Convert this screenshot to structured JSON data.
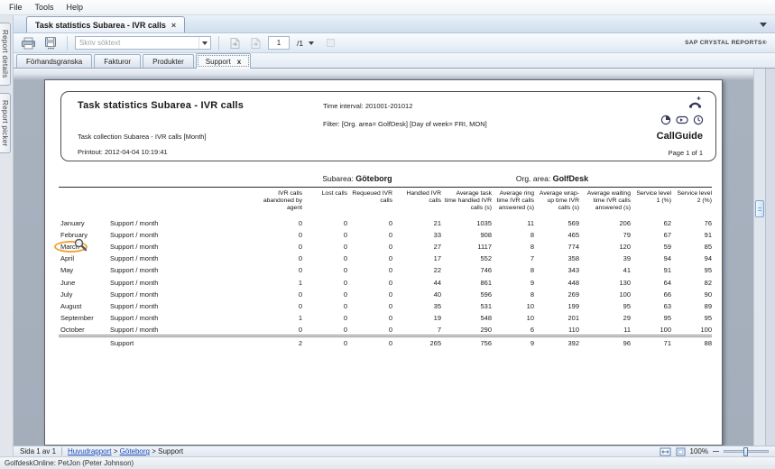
{
  "menu": {
    "items": [
      "File",
      "Tools",
      "Help"
    ]
  },
  "left_rail": {
    "tabs": [
      "Report details",
      "Report picker"
    ]
  },
  "document_tab": {
    "title": "Task statistics Subarea - IVR calls",
    "close_label": "×"
  },
  "toolbar": {
    "search_placeholder": "Skriv söktext",
    "page_number": "1",
    "page_total": "/1",
    "brand": "SAP CRYSTAL REPORTS®"
  },
  "subtabs": [
    {
      "label": "Förhandsgranska",
      "active": false,
      "closable": false
    },
    {
      "label": "Fakturor",
      "active": false,
      "closable": false
    },
    {
      "label": "Produkter",
      "active": false,
      "closable": false
    },
    {
      "label": "Support",
      "active": true,
      "closable": true,
      "close_label": "x"
    }
  ],
  "report": {
    "title": "Task statistics Subarea - IVR calls",
    "collection": "Task collection Subarea - IVR calls [Month]",
    "printout": "Printout: 2012-04-04 10:19:41",
    "time_interval": "Time interval: 201001-201012",
    "filter": "Filter: [Org. area= GolfDesk] [Day of week= FRI, MON]",
    "brand": "CallGuide",
    "page_label": "Page 1 of 1",
    "groups": {
      "left_label": "Subarea: ",
      "left_value": "Göteborg",
      "right_label": "Org. area: ",
      "right_value": "GolfDesk"
    },
    "table": {
      "columns": [
        "IVR calls abandoned by agent",
        "Lost calls",
        "Requeued IVR calls",
        "Handled IVR calls",
        "Average task time handled IVR calls (s)",
        "Average ring time IVR calls answered (s)",
        "Average wrap-up time IVR calls (s)",
        "Average waiting time IVR calls answered (s)",
        "Service level 1 (%)",
        "Service level 2 (%)"
      ],
      "rows": [
        {
          "month": "January",
          "task": "Support / month",
          "values": [
            0,
            0,
            0,
            21,
            1035,
            11,
            569,
            206,
            62,
            76
          ]
        },
        {
          "month": "February",
          "task": "Support / month",
          "values": [
            0,
            0,
            0,
            33,
            908,
            8,
            465,
            79,
            67,
            91
          ]
        },
        {
          "month": "March",
          "task": "Support / month",
          "values": [
            0,
            0,
            0,
            27,
            1117,
            8,
            774,
            120,
            59,
            85
          ],
          "hovered": true
        },
        {
          "month": "April",
          "task": "Support / month",
          "values": [
            0,
            0,
            0,
            17,
            552,
            7,
            358,
            39,
            94,
            94
          ]
        },
        {
          "month": "May",
          "task": "Support / month",
          "values": [
            0,
            0,
            0,
            22,
            746,
            8,
            343,
            41,
            91,
            95
          ]
        },
        {
          "month": "June",
          "task": "Support / month",
          "values": [
            1,
            0,
            0,
            44,
            861,
            9,
            448,
            130,
            64,
            82
          ]
        },
        {
          "month": "July",
          "task": "Support / month",
          "values": [
            0,
            0,
            0,
            40,
            596,
            8,
            269,
            100,
            66,
            90
          ]
        },
        {
          "month": "August",
          "task": "Support / month",
          "values": [
            0,
            0,
            0,
            35,
            531,
            10,
            199,
            95,
            63,
            89
          ]
        },
        {
          "month": "September",
          "task": "Support / month",
          "values": [
            1,
            0,
            0,
            19,
            548,
            10,
            201,
            29,
            95,
            95
          ]
        },
        {
          "month": "October",
          "task": "Support / month",
          "values": [
            0,
            0,
            0,
            7,
            290,
            6,
            110,
            11,
            100,
            100
          ]
        }
      ],
      "total": {
        "task": "Support",
        "values": [
          2,
          0,
          0,
          265,
          756,
          9,
          392,
          96,
          71,
          88
        ]
      }
    }
  },
  "statusbar": {
    "page_info": "Sida 1 av 1",
    "breadcrumb": [
      {
        "label": "Huvudrapport",
        "link": true
      },
      {
        "label": "Göteborg",
        "link": true
      },
      {
        "label": "Support",
        "link": false
      }
    ],
    "separator": ">",
    "zoom_level": "100%"
  },
  "app_status": "GolfdeskOnline: PetJon (Peter Johnson)"
}
